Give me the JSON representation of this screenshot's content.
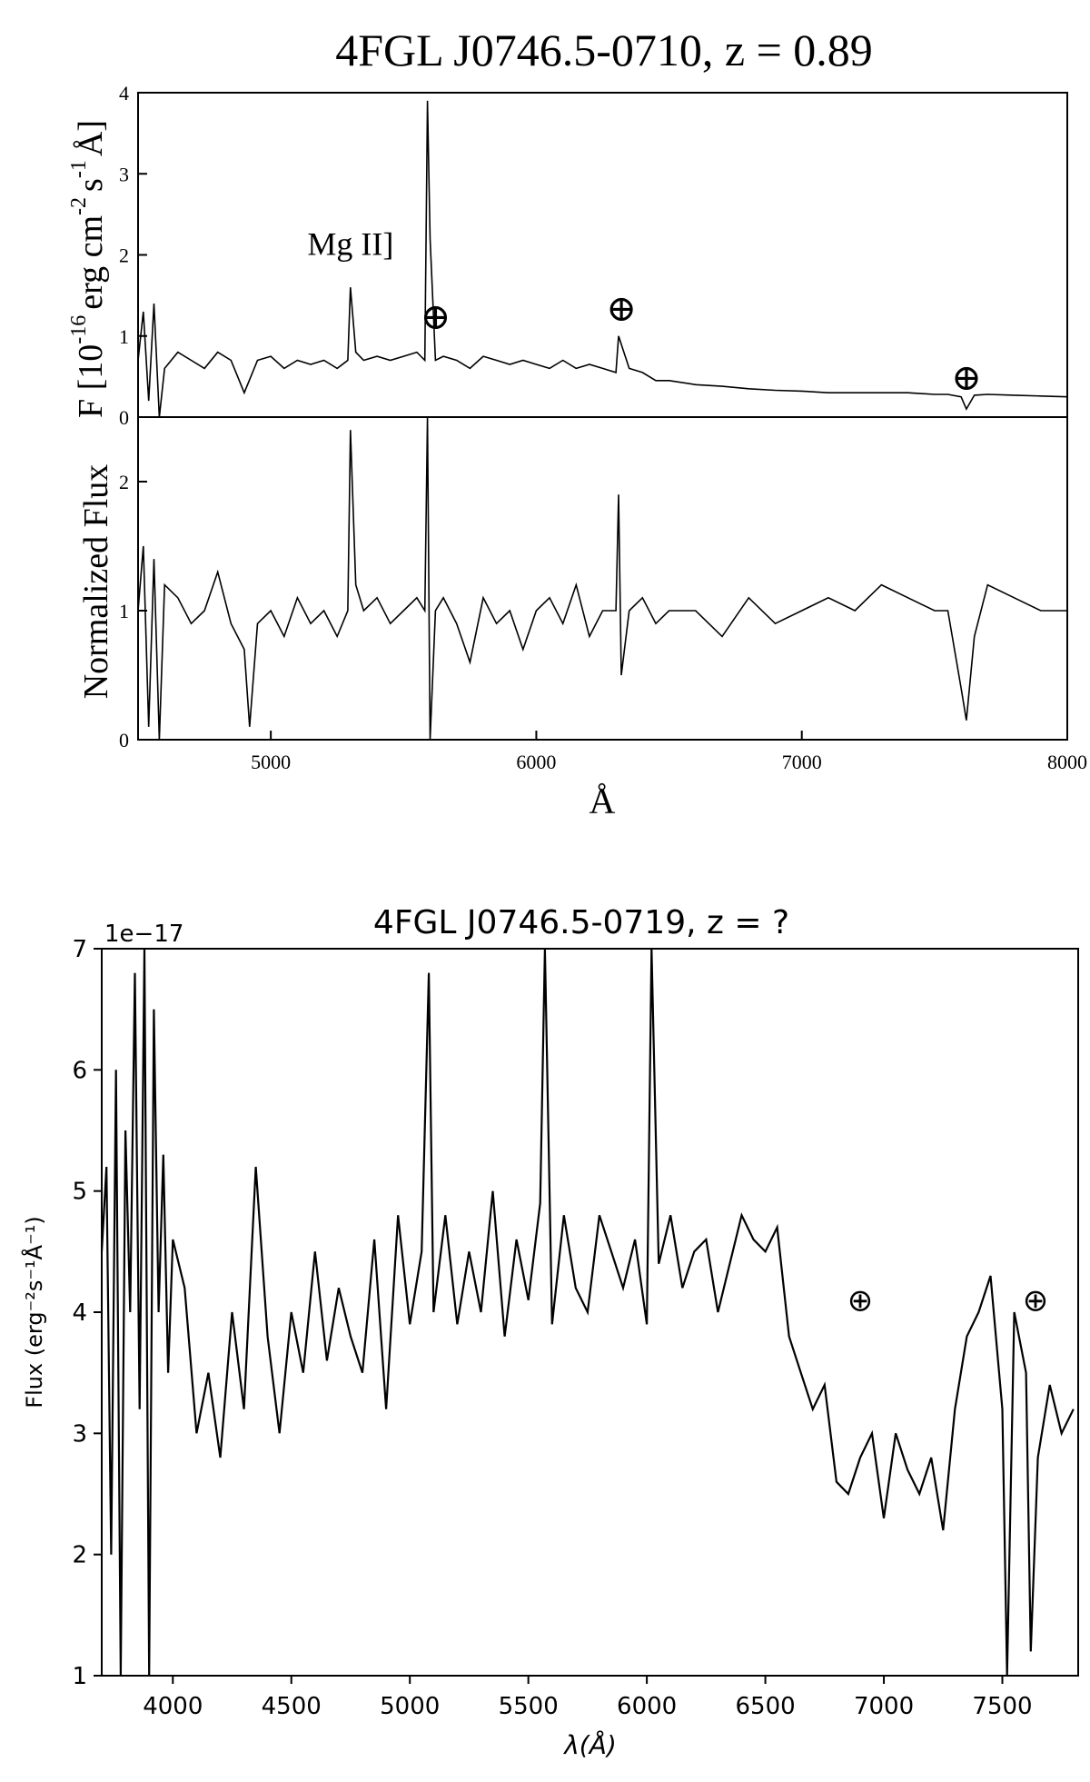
{
  "chart_data": [
    {
      "type": "line",
      "title": "4FGL J0746.5-0710, z = 0.89",
      "xlabel": "Å",
      "xlim": [
        4500,
        8000
      ],
      "xticks": [
        "5000",
        "6000",
        "7000",
        "8000"
      ],
      "panels": [
        {
          "ylabel_main": "F [10",
          "ylabel_exp": "-16",
          "ylabel_rest": "erg cm",
          "ylabel_exp2": "-2",
          "ylabel_s": "s",
          "ylabel_exp3": "-1",
          "ylabel_end": "Å]",
          "ylim": [
            0,
            4
          ],
          "yticks": [
            "0",
            "1",
            "2",
            "3",
            "4"
          ],
          "annotations": [
            {
              "text": "Mg II]",
              "x": 5300,
              "y": 2.0
            },
            {
              "text": "⊕",
              "x": 5620,
              "y": 1.22
            },
            {
              "text": "⊕",
              "x": 6320,
              "y": 1.32
            },
            {
              "text": "⊕",
              "x": 7620,
              "y": 0.47
            }
          ],
          "series": [
            {
              "x": [
                4500,
                4520,
                4540,
                4560,
                4580,
                4600,
                4650,
                4700,
                4750,
                4800,
                4850,
                4900,
                4950,
                5000,
                5050,
                5100,
                5150,
                5200,
                5250,
                5290,
                5300,
                5320,
                5350,
                5400,
                5450,
                5500,
                5550,
                5580,
                5590,
                5600,
                5620,
                5650,
                5700,
                5750,
                5800,
                5850,
                5900,
                5950,
                6000,
                6050,
                6100,
                6150,
                6200,
                6250,
                6300,
                6310,
                6350,
                6400,
                6450,
                6500,
                6600,
                6700,
                6800,
                6900,
                7000,
                7100,
                7200,
                7300,
                7400,
                7500,
                7550,
                7600,
                7620,
                7650,
                7700,
                7800,
                7900,
                8000
              ],
              "y": [
                0.7,
                1.3,
                0.2,
                1.4,
                0.0,
                0.6,
                0.8,
                0.7,
                0.6,
                0.8,
                0.7,
                0.3,
                0.7,
                0.75,
                0.6,
                0.7,
                0.65,
                0.7,
                0.6,
                0.7,
                1.6,
                0.8,
                0.7,
                0.75,
                0.7,
                0.75,
                0.8,
                0.7,
                3.9,
                2.2,
                0.7,
                0.75,
                0.7,
                0.6,
                0.75,
                0.7,
                0.65,
                0.7,
                0.65,
                0.6,
                0.7,
                0.6,
                0.65,
                0.6,
                0.55,
                1.0,
                0.6,
                0.55,
                0.45,
                0.45,
                0.4,
                0.38,
                0.35,
                0.33,
                0.32,
                0.3,
                0.3,
                0.3,
                0.3,
                0.28,
                0.28,
                0.25,
                0.1,
                0.27,
                0.28,
                0.27,
                0.26,
                0.25
              ]
            }
          ]
        },
        {
          "ylabel": "Normalized Flux",
          "ylim": [
            0,
            2.5
          ],
          "yticks": [
            "0",
            "1",
            "2"
          ],
          "series": [
            {
              "x": [
                4500,
                4520,
                4540,
                4560,
                4580,
                4600,
                4650,
                4700,
                4750,
                4800,
                4850,
                4900,
                4920,
                4950,
                5000,
                5050,
                5100,
                5150,
                5200,
                5250,
                5290,
                5300,
                5320,
                5350,
                5400,
                5450,
                5500,
                5550,
                5580,
                5590,
                5600,
                5620,
                5650,
                5700,
                5750,
                5800,
                5850,
                5900,
                5950,
                6000,
                6050,
                6100,
                6150,
                6200,
                6250,
                6300,
                6310,
                6320,
                6350,
                6400,
                6450,
                6500,
                6600,
                6700,
                6800,
                6900,
                7000,
                7100,
                7200,
                7300,
                7400,
                7500,
                7550,
                7600,
                7620,
                7650,
                7700,
                7800,
                7900,
                8000
              ],
              "y": [
                1.0,
                1.5,
                0.1,
                1.4,
                0.0,
                1.2,
                1.1,
                0.9,
                1.0,
                1.3,
                0.9,
                0.7,
                0.1,
                0.9,
                1.0,
                0.8,
                1.1,
                0.9,
                1.0,
                0.8,
                1.0,
                2.4,
                1.2,
                1.0,
                1.1,
                0.9,
                1.0,
                1.1,
                1.0,
                2.5,
                0.0,
                1.0,
                1.1,
                0.9,
                0.6,
                1.1,
                0.9,
                1.0,
                0.7,
                1.0,
                1.1,
                0.9,
                1.2,
                0.8,
                1.0,
                1.0,
                1.9,
                0.5,
                1.0,
                1.1,
                0.9,
                1.0,
                1.0,
                0.8,
                1.1,
                0.9,
                1.0,
                1.1,
                1.0,
                1.2,
                1.1,
                1.0,
                1.0,
                0.4,
                0.15,
                0.8,
                1.2,
                1.1,
                1.0,
                1.0
              ]
            }
          ]
        }
      ]
    },
    {
      "type": "line",
      "title": "4FGL J0746.5-0719, z = ?",
      "xlabel": "λ(Å)",
      "ylabel": "Flux (erg⁻²s⁻¹Å⁻¹)",
      "offset_text": "1e−17",
      "xlim": [
        3700,
        7820
      ],
      "ylim": [
        1,
        7
      ],
      "xticks": [
        "4000",
        "4500",
        "5000",
        "5500",
        "6000",
        "6500",
        "7000",
        "7500"
      ],
      "yticks": [
        "1",
        "2",
        "3",
        "4",
        "5",
        "6",
        "7"
      ],
      "annotations": [
        {
          "text": "⊕",
          "x": 6900,
          "y": 4.1
        },
        {
          "text": "⊕",
          "x": 7640,
          "y": 4.1
        }
      ],
      "series": [
        {
          "x": [
            3700,
            3720,
            3740,
            3760,
            3780,
            3800,
            3820,
            3840,
            3860,
            3880,
            3900,
            3920,
            3940,
            3960,
            3980,
            4000,
            4050,
            4100,
            4150,
            4200,
            4250,
            4300,
            4350,
            4400,
            4450,
            4500,
            4550,
            4600,
            4650,
            4700,
            4750,
            4800,
            4850,
            4900,
            4950,
            5000,
            5050,
            5080,
            5100,
            5150,
            5200,
            5250,
            5300,
            5350,
            5400,
            5450,
            5500,
            5550,
            5570,
            5600,
            5650,
            5700,
            5750,
            5800,
            5850,
            5900,
            5950,
            6000,
            6020,
            6050,
            6100,
            6150,
            6200,
            6250,
            6300,
            6350,
            6400,
            6450,
            6500,
            6550,
            6600,
            6650,
            6700,
            6750,
            6800,
            6850,
            6900,
            6950,
            7000,
            7050,
            7100,
            7150,
            7200,
            7250,
            7300,
            7350,
            7400,
            7450,
            7500,
            7520,
            7550,
            7600,
            7620,
            7650,
            7700,
            7750,
            7800
          ],
          "y": [
            4.5,
            5.2,
            2.0,
            6.0,
            1.0,
            5.5,
            4.0,
            6.8,
            3.2,
            7.0,
            1.0,
            6.5,
            4.0,
            5.3,
            3.5,
            4.6,
            4.2,
            3.0,
            3.5,
            2.8,
            4.0,
            3.2,
            5.2,
            3.8,
            3.0,
            4.0,
            3.5,
            4.5,
            3.6,
            4.2,
            3.8,
            3.5,
            4.6,
            3.2,
            4.8,
            3.9,
            4.5,
            6.8,
            4.0,
            4.8,
            3.9,
            4.5,
            4.0,
            5.0,
            3.8,
            4.6,
            4.1,
            4.9,
            7.0,
            3.9,
            4.8,
            4.2,
            4.0,
            4.8,
            4.5,
            4.2,
            4.6,
            3.9,
            7.0,
            4.4,
            4.8,
            4.2,
            4.5,
            4.6,
            4.0,
            4.4,
            4.8,
            4.6,
            4.5,
            4.7,
            3.8,
            3.5,
            3.2,
            3.4,
            2.6,
            2.5,
            2.8,
            3.0,
            2.3,
            3.0,
            2.7,
            2.5,
            2.8,
            2.2,
            3.2,
            3.8,
            4.0,
            4.3,
            3.2,
            1.0,
            4.0,
            3.5,
            1.2,
            2.8,
            3.4,
            3.0,
            3.2
          ]
        }
      ]
    }
  ]
}
